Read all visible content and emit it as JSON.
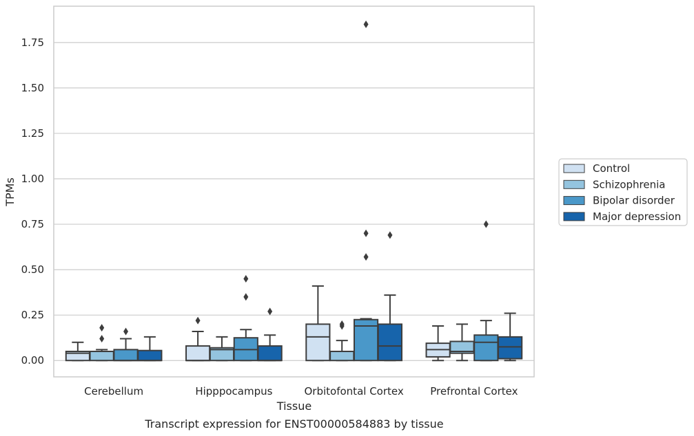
{
  "chart_data": {
    "type": "box",
    "xlabel": "Tissue",
    "ylabel": "TPMs",
    "caption": "Transcript expression for ENST00000584883 by tissue",
    "ylim": [
      -0.09,
      1.95
    ],
    "yticks": [
      "0.00",
      "0.25",
      "0.50",
      "0.75",
      "1.00",
      "1.25",
      "1.50",
      "1.75"
    ],
    "grid": true,
    "legend_position": "right",
    "categories": [
      "Cerebellum",
      "Hipppocampus",
      "Orbitofontal Cortex",
      "Prefrontal Cortex"
    ],
    "series": [
      {
        "name": "Control",
        "color": "#d0e1f2",
        "boxes": [
          {
            "whisker_low": 0.0,
            "q1": 0.0,
            "median": 0.04,
            "q3": 0.05,
            "whisker_high": 0.1,
            "outliers": []
          },
          {
            "whisker_low": 0.0,
            "q1": 0.0,
            "median": 0.0,
            "q3": 0.08,
            "whisker_high": 0.16,
            "outliers": [
              0.22
            ]
          },
          {
            "whisker_low": 0.0,
            "q1": 0.0,
            "median": 0.13,
            "q3": 0.2,
            "whisker_high": 0.41,
            "outliers": []
          },
          {
            "whisker_low": 0.0,
            "q1": 0.02,
            "median": 0.06,
            "q3": 0.095,
            "whisker_high": 0.19,
            "outliers": []
          }
        ]
      },
      {
        "name": "Schizophrenia",
        "color": "#94c4df",
        "boxes": [
          {
            "whisker_low": 0.0,
            "q1": 0.0,
            "median": 0.05,
            "q3": 0.05,
            "whisker_high": 0.06,
            "outliers": [
              0.12,
              0.18
            ]
          },
          {
            "whisker_low": 0.0,
            "q1": 0.0,
            "median": 0.06,
            "q3": 0.07,
            "whisker_high": 0.13,
            "outliers": []
          },
          {
            "whisker_low": 0.0,
            "q1": 0.0,
            "median": 0.05,
            "q3": 0.05,
            "whisker_high": 0.11,
            "outliers": [
              0.19,
              0.2
            ]
          },
          {
            "whisker_low": 0.0,
            "q1": 0.04,
            "median": 0.05,
            "q3": 0.105,
            "whisker_high": 0.2,
            "outliers": []
          }
        ]
      },
      {
        "name": "Bipolar disorder",
        "color": "#4a98c9",
        "boxes": [
          {
            "whisker_low": 0.0,
            "q1": 0.0,
            "median": 0.0,
            "q3": 0.06,
            "whisker_high": 0.12,
            "outliers": [
              0.16
            ]
          },
          {
            "whisker_low": 0.0,
            "q1": 0.0,
            "median": 0.06,
            "q3": 0.125,
            "whisker_high": 0.17,
            "outliers": [
              0.35,
              0.45
            ]
          },
          {
            "whisker_low": 0.0,
            "q1": 0.0,
            "median": 0.19,
            "q3": 0.225,
            "whisker_high": 0.23,
            "outliers": [
              0.57,
              0.7,
              1.85
            ]
          },
          {
            "whisker_low": 0.0,
            "q1": 0.0,
            "median": 0.1,
            "q3": 0.14,
            "whisker_high": 0.22,
            "outliers": [
              0.75
            ]
          }
        ]
      },
      {
        "name": "Major depression",
        "color": "#1764ab",
        "boxes": [
          {
            "whisker_low": 0.0,
            "q1": 0.0,
            "median": 0.0,
            "q3": 0.055,
            "whisker_high": 0.13,
            "outliers": []
          },
          {
            "whisker_low": 0.0,
            "q1": 0.0,
            "median": 0.0,
            "q3": 0.08,
            "whisker_high": 0.14,
            "outliers": [
              0.27
            ]
          },
          {
            "whisker_low": 0.0,
            "q1": 0.0,
            "median": 0.08,
            "q3": 0.2,
            "whisker_high": 0.36,
            "outliers": [
              0.69
            ]
          },
          {
            "whisker_low": 0.0,
            "q1": 0.01,
            "median": 0.075,
            "q3": 0.13,
            "whisker_high": 0.26,
            "outliers": []
          }
        ]
      }
    ]
  }
}
